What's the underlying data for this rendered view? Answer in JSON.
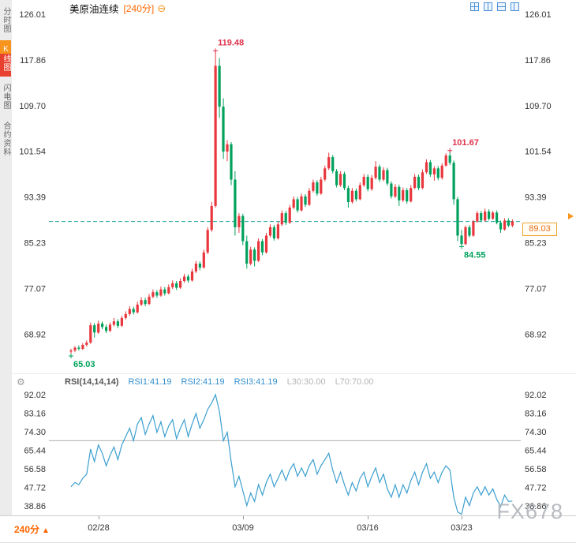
{
  "sidebar": {
    "items": [
      {
        "label": "分时图",
        "active": false
      },
      {
        "label": "K线图",
        "active": true
      },
      {
        "label": "闪电图",
        "active": false
      },
      {
        "label": "合约资料",
        "active": false
      }
    ]
  },
  "header": {
    "symbol": "美原油连续",
    "interval": "[240分]"
  },
  "icons": {
    "collapse": "⊖",
    "settings": "⚙",
    "up_arrow": "▲"
  },
  "price_marker": {
    "label": "89.03"
  },
  "footer": {
    "interval": "240分",
    "watermark": "FX678"
  },
  "colors": {
    "up": "#e8373d",
    "down": "#00a15c",
    "ann_red": "#e0314b",
    "ann_green": "#00a15c",
    "price_line": "#17a398",
    "rsi_line": "#3b9fcf",
    "ref_line": "#b0b0b0",
    "accent": "#ff6600",
    "toolbar_blue": "#4a90d9"
  },
  "chart_data": [
    {
      "type": "candlestick",
      "title": "美原油连续",
      "interval": "240分",
      "ylabels": [
        126.01,
        117.86,
        109.7,
        101.54,
        93.39,
        85.23,
        77.07,
        68.92
      ],
      "ylim": [
        63.5,
        127.5
      ],
      "current_price": 89.03,
      "annotations": [
        {
          "text": "119.48",
          "price": 119.48,
          "index": 37,
          "color": "red",
          "position": "above"
        },
        {
          "text": "101.67",
          "price": 101.67,
          "index": 97,
          "color": "red",
          "position": "above"
        },
        {
          "text": "84.55",
          "price": 84.55,
          "index": 100,
          "color": "green",
          "position": "below"
        },
        {
          "text": "65.03",
          "price": 65.03,
          "index": 0,
          "color": "green",
          "position": "below"
        }
      ],
      "x_ticks": [
        {
          "label": "02/28",
          "index": 7
        },
        {
          "label": "03/09",
          "index": 44
        },
        {
          "label": "03/16",
          "index": 76
        },
        {
          "label": "03/23",
          "index": 100
        }
      ],
      "candles": [
        [
          65.8,
          66.3,
          65.03,
          66.0
        ],
        [
          66.0,
          66.8,
          65.7,
          66.5
        ],
        [
          66.5,
          66.9,
          66.0,
          66.3
        ],
        [
          66.3,
          67.3,
          66.1,
          67.0
        ],
        [
          67.0,
          67.8,
          66.7,
          67.4
        ],
        [
          67.4,
          71.0,
          67.2,
          70.5
        ],
        [
          70.5,
          70.9,
          68.3,
          69.2
        ],
        [
          69.2,
          71.3,
          69.0,
          70.8
        ],
        [
          70.8,
          71.2,
          69.8,
          70.2
        ],
        [
          70.2,
          70.6,
          69.1,
          69.5
        ],
        [
          69.5,
          71.0,
          69.3,
          70.6
        ],
        [
          70.6,
          71.8,
          70.3,
          71.2
        ],
        [
          71.2,
          71.6,
          70.0,
          70.4
        ],
        [
          70.4,
          72.2,
          70.2,
          71.8
        ],
        [
          71.8,
          73.0,
          71.5,
          72.5
        ],
        [
          72.5,
          73.9,
          72.2,
          73.4
        ],
        [
          73.4,
          73.8,
          72.4,
          72.8
        ],
        [
          72.8,
          74.7,
          72.6,
          74.2
        ],
        [
          74.2,
          75.5,
          73.9,
          75.0
        ],
        [
          75.0,
          75.4,
          73.9,
          74.3
        ],
        [
          74.3,
          76.1,
          74.1,
          75.6
        ],
        [
          75.6,
          76.9,
          75.3,
          76.4
        ],
        [
          76.4,
          76.8,
          75.4,
          75.8
        ],
        [
          75.8,
          77.4,
          75.6,
          76.9
        ],
        [
          76.9,
          77.3,
          75.8,
          76.2
        ],
        [
          76.2,
          77.8,
          76.0,
          77.3
        ],
        [
          77.3,
          78.5,
          77.0,
          78.0
        ],
        [
          78.0,
          78.4,
          76.8,
          77.2
        ],
        [
          77.2,
          78.9,
          77.0,
          78.4
        ],
        [
          78.4,
          79.7,
          78.1,
          79.2
        ],
        [
          79.2,
          79.6,
          78.1,
          78.5
        ],
        [
          78.5,
          80.6,
          78.3,
          80.1
        ],
        [
          80.1,
          82.0,
          79.8,
          81.5
        ],
        [
          81.5,
          81.9,
          80.3,
          80.8
        ],
        [
          80.8,
          84.0,
          80.6,
          83.5
        ],
        [
          83.5,
          88.0,
          83.2,
          87.5
        ],
        [
          87.5,
          92.5,
          87.2,
          91.8
        ],
        [
          91.8,
          119.48,
          91.5,
          116.8
        ],
        [
          116.8,
          118.2,
          107.5,
          109.5
        ],
        [
          109.5,
          111.0,
          100.2,
          101.5
        ],
        [
          101.5,
          103.5,
          99.8,
          102.8
        ],
        [
          102.8,
          103.2,
          95.5,
          96.5
        ],
        [
          96.5,
          98.0,
          86.5,
          88.0
        ],
        [
          88.0,
          90.5,
          87.0,
          90.0
        ],
        [
          90.0,
          90.4,
          84.8,
          85.5
        ],
        [
          85.5,
          86.5,
          80.6,
          81.5
        ],
        [
          81.5,
          84.5,
          81.2,
          84.0
        ],
        [
          84.0,
          84.4,
          81.0,
          82.0
        ],
        [
          82.0,
          86.0,
          81.8,
          85.5
        ],
        [
          85.5,
          85.9,
          83.0,
          83.5
        ],
        [
          83.5,
          87.0,
          83.3,
          86.5
        ],
        [
          86.5,
          88.5,
          86.2,
          88.0
        ],
        [
          88.0,
          88.4,
          85.6,
          86.0
        ],
        [
          86.0,
          89.0,
          85.8,
          88.5
        ],
        [
          88.5,
          91.0,
          88.2,
          90.5
        ],
        [
          90.5,
          90.9,
          88.4,
          88.8
        ],
        [
          88.8,
          92.0,
          88.6,
          91.5
        ],
        [
          91.5,
          93.5,
          91.2,
          93.0
        ],
        [
          93.0,
          93.4,
          90.6,
          91.0
        ],
        [
          91.0,
          94.0,
          90.8,
          93.5
        ],
        [
          93.5,
          93.9,
          91.6,
          92.0
        ],
        [
          92.0,
          95.0,
          91.8,
          94.5
        ],
        [
          94.5,
          96.5,
          94.2,
          96.0
        ],
        [
          96.0,
          96.4,
          93.6,
          94.0
        ],
        [
          94.0,
          97.0,
          93.8,
          96.5
        ],
        [
          96.5,
          99.0,
          96.2,
          98.5
        ],
        [
          98.5,
          101.3,
          98.2,
          100.5
        ],
        [
          100.5,
          100.9,
          97.6,
          98.0
        ],
        [
          98.0,
          98.4,
          95.1,
          95.5
        ],
        [
          95.5,
          98.0,
          95.2,
          97.5
        ],
        [
          97.5,
          97.9,
          94.6,
          95.0
        ],
        [
          95.0,
          95.4,
          91.5,
          92.5
        ],
        [
          92.5,
          95.0,
          92.2,
          94.5
        ],
        [
          94.5,
          94.9,
          92.6,
          93.0
        ],
        [
          93.0,
          96.0,
          92.8,
          95.5
        ],
        [
          95.5,
          97.5,
          95.2,
          97.0
        ],
        [
          97.0,
          97.4,
          94.4,
          94.8
        ],
        [
          94.8,
          97.3,
          94.5,
          96.8
        ],
        [
          96.8,
          99.8,
          96.5,
          98.8
        ],
        [
          98.8,
          99.2,
          96.1,
          96.5
        ],
        [
          96.5,
          98.7,
          96.2,
          98.2
        ],
        [
          98.2,
          98.6,
          95.4,
          95.8
        ],
        [
          95.8,
          96.2,
          93.1,
          93.5
        ],
        [
          93.5,
          95.7,
          93.2,
          95.2
        ],
        [
          95.2,
          95.6,
          91.8,
          92.8
        ],
        [
          92.8,
          95.1,
          92.5,
          94.6
        ],
        [
          94.6,
          95.0,
          92.2,
          92.6
        ],
        [
          92.6,
          95.5,
          92.4,
          95.0
        ],
        [
          95.0,
          97.5,
          94.8,
          97.0
        ],
        [
          97.0,
          97.4,
          94.6,
          95.0
        ],
        [
          95.0,
          98.3,
          94.8,
          97.8
        ],
        [
          97.8,
          100.1,
          97.5,
          99.6
        ],
        [
          99.6,
          100.0,
          97.0,
          97.4
        ],
        [
          97.4,
          98.9,
          96.3,
          98.5
        ],
        [
          98.5,
          98.9,
          96.4,
          96.8
        ],
        [
          96.8,
          99.4,
          96.5,
          99.0
        ],
        [
          99.0,
          101.2,
          98.8,
          100.8
        ],
        [
          100.8,
          101.67,
          99.1,
          99.5
        ],
        [
          99.5,
          99.9,
          92.0,
          93.0
        ],
        [
          93.0,
          93.4,
          85.5,
          86.5
        ],
        [
          86.5,
          87.5,
          84.55,
          85.0
        ],
        [
          85.0,
          88.3,
          84.8,
          88.0
        ],
        [
          88.0,
          88.4,
          86.2,
          86.5
        ],
        [
          86.5,
          89.3,
          86.3,
          89.0
        ],
        [
          89.0,
          90.9,
          88.8,
          90.5
        ],
        [
          90.5,
          90.9,
          88.9,
          89.2
        ],
        [
          89.2,
          91.3,
          89.0,
          90.8
        ],
        [
          90.8,
          91.2,
          89.2,
          89.5
        ],
        [
          89.5,
          90.9,
          89.3,
          90.6
        ],
        [
          90.6,
          91.0,
          88.5,
          88.8
        ],
        [
          88.8,
          89.2,
          87.0,
          87.6
        ],
        [
          87.6,
          89.6,
          87.4,
          89.2
        ],
        [
          89.2,
          89.6,
          88.0,
          88.3
        ],
        [
          88.3,
          89.4,
          88.0,
          89.03
        ]
      ]
    },
    {
      "type": "line",
      "name": "RSI",
      "header": {
        "title": "RSI(14,14,14)",
        "rsi1": "RSI1:41.19",
        "rsi2": "RSI2:41.19",
        "rsi3": "RSI3:41.19",
        "l30": "L30:30.00",
        "l70": "L70:70.00"
      },
      "ylabels": [
        92.02,
        83.16,
        74.3,
        65.44,
        56.58,
        47.72,
        38.86
      ],
      "ylim": [
        33,
        95
      ],
      "ref_line": 70,
      "values": [
        48,
        50,
        49,
        52,
        54,
        66,
        60,
        68,
        64,
        58,
        63,
        67,
        61,
        68,
        72,
        76,
        70,
        78,
        81,
        73,
        78,
        82,
        74,
        79,
        72,
        77,
        80,
        71,
        76,
        80,
        72,
        78,
        83,
        76,
        80,
        85,
        88,
        92.02,
        84,
        70,
        74,
        60,
        48,
        53,
        46,
        39,
        45,
        41,
        49,
        44,
        50,
        54,
        48,
        52,
        56,
        51,
        56,
        59,
        53,
        57,
        53,
        58,
        61,
        54,
        58,
        61,
        64,
        56,
        50,
        55,
        49,
        44,
        50,
        46,
        52,
        55,
        48,
        53,
        57,
        50,
        54,
        47,
        43,
        49,
        43,
        49,
        45,
        51,
        55,
        49,
        55,
        59,
        52,
        55,
        50,
        55,
        58,
        56,
        43,
        36,
        34.8,
        43,
        39,
        45,
        48,
        44,
        48,
        44,
        47,
        42,
        38.5,
        44,
        41,
        41.19
      ]
    }
  ]
}
